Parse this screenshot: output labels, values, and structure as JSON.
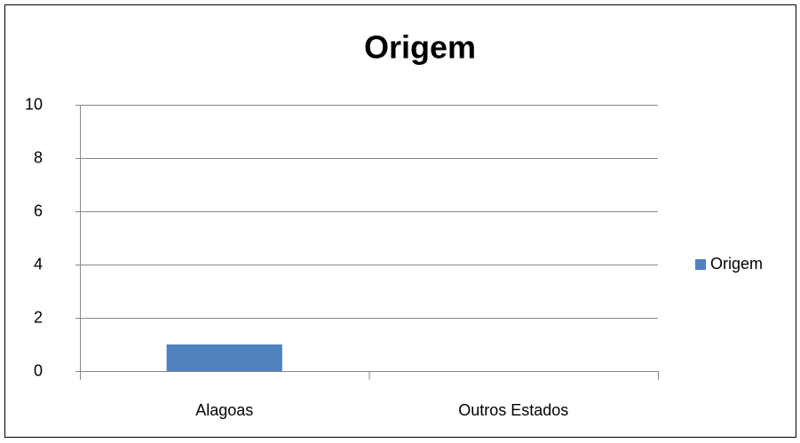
{
  "chart_data": {
    "type": "bar",
    "title": "Origem",
    "categories": [
      "Alagoas",
      "Outros Estados"
    ],
    "series": [
      {
        "name": "Origem",
        "color": "#4f81bd",
        "values": [
          1,
          0
        ]
      }
    ],
    "ylim": [
      0,
      10
    ],
    "yticks": [
      0,
      2,
      4,
      6,
      8,
      10
    ],
    "grid": true,
    "legend": "right"
  }
}
